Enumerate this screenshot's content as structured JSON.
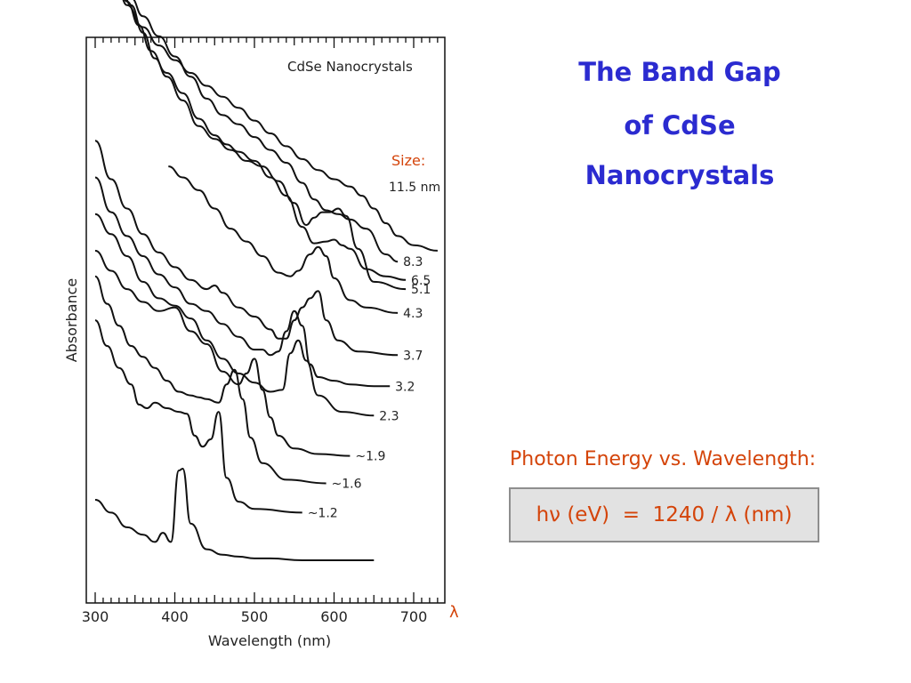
{
  "title_lines": [
    "The Band Gap",
    "of CdSe",
    "Nanocrystals"
  ],
  "photon_energy_label": "Photon Energy vs. Wavelength:",
  "formula": "hν (eV)  =  1240 / λ (nm)",
  "colors": {
    "title": "#2b2bd0",
    "accent": "#d4440a",
    "box_bg": "#e2e2e2",
    "box_border": "#8e8e8e"
  },
  "chart_data": {
    "type": "line",
    "title": "CdSe Nanocrystals",
    "xlabel": "Wavelength (nm)",
    "ylabel": "Absorbance",
    "x_axis_symbol": "λ",
    "xlim": [
      300,
      730
    ],
    "xticks": [
      "300",
      "400",
      "500",
      "600",
      "700"
    ],
    "size_header": "Size:",
    "grid": false,
    "series": [
      {
        "name": "11.5 nm",
        "x": [
          326,
          340,
          360,
          380,
          400,
          420,
          440,
          460,
          480,
          500,
          520,
          540,
          560,
          580,
          600,
          620,
          635,
          650,
          665,
          680,
          700,
          730
        ],
        "y": [
          12.0,
          11.3,
          10.7,
          10.2,
          9.8,
          9.45,
          9.1,
          8.8,
          8.5,
          8.15,
          7.8,
          7.45,
          7.1,
          6.8,
          6.55,
          6.35,
          6.1,
          5.75,
          5.35,
          5.0,
          4.75,
          4.6
        ]
      },
      {
        "name": "8.3",
        "x": [
          345,
          360,
          380,
          400,
          420,
          440,
          460,
          480,
          500,
          520,
          540,
          560,
          575,
          590,
          605,
          620,
          640,
          665,
          680
        ],
        "y": [
          11.5,
          11.0,
          10.45,
          9.9,
          9.35,
          8.75,
          8.3,
          8.05,
          7.7,
          7.35,
          7.0,
          6.45,
          6.0,
          5.7,
          5.6,
          5.45,
          5.2,
          4.5,
          4.3
        ]
      },
      {
        "name": "6.5",
        "x": [
          328,
          340,
          355,
          370,
          390,
          410,
          430,
          450,
          465,
          480,
          500,
          520,
          540,
          560,
          575,
          590,
          600,
          610,
          620,
          640,
          665,
          690
        ],
        "y": [
          12.0,
          11.4,
          10.75,
          10.05,
          9.45,
          8.9,
          8.2,
          7.75,
          7.5,
          7.3,
          7.05,
          6.6,
          6.1,
          5.25,
          4.8,
          4.85,
          4.9,
          4.75,
          4.65,
          4.1,
          3.9,
          3.8
        ]
      },
      {
        "name": "5.1",
        "x": [
          330,
          345,
          360,
          375,
          390,
          410,
          430,
          450,
          470,
          490,
          510,
          530,
          550,
          565,
          575,
          585,
          595,
          605,
          615,
          630,
          650,
          690
        ],
        "y": [
          12.0,
          11.3,
          10.55,
          9.85,
          9.35,
          8.7,
          8.0,
          7.65,
          7.35,
          7.05,
          6.9,
          6.5,
          5.9,
          5.3,
          5.5,
          5.65,
          5.65,
          5.75,
          5.55,
          4.65,
          3.75,
          3.55
        ]
      },
      {
        "name": "4.3",
        "x": [
          392,
          410,
          430,
          450,
          470,
          490,
          510,
          530,
          545,
          555,
          570,
          580,
          590,
          600,
          620,
          640,
          680
        ],
        "y": [
          6.9,
          6.6,
          6.25,
          5.75,
          5.2,
          4.85,
          4.45,
          4.0,
          3.9,
          4.05,
          4.5,
          4.7,
          4.45,
          3.85,
          3.25,
          3.05,
          2.9
        ]
      },
      {
        "name": "3.7",
        "x": [
          300,
          320,
          340,
          360,
          380,
          400,
          420,
          440,
          450,
          460,
          480,
          500,
          520,
          530,
          540,
          550,
          560,
          570,
          580,
          590,
          605,
          630,
          680
        ],
        "y": [
          7.6,
          6.55,
          5.75,
          5.05,
          4.55,
          4.15,
          3.8,
          3.55,
          3.65,
          3.45,
          3.05,
          2.8,
          2.45,
          2.2,
          2.2,
          2.7,
          3.05,
          3.3,
          3.5,
          2.7,
          2.15,
          1.85,
          1.75
        ]
      },
      {
        "name": "3.2",
        "x": [
          300,
          320,
          340,
          360,
          380,
          400,
          420,
          440,
          460,
          480,
          500,
          510,
          520,
          530,
          540,
          550,
          560,
          570,
          580,
          600,
          620,
          650,
          670
        ],
        "y": [
          6.6,
          5.65,
          5.0,
          4.45,
          3.95,
          3.6,
          3.15,
          2.95,
          2.6,
          2.25,
          1.9,
          1.9,
          1.75,
          1.85,
          2.4,
          2.95,
          2.55,
          1.5,
          1.15,
          1.05,
          0.95,
          0.9,
          0.9
        ]
      },
      {
        "name": "2.3",
        "x": [
          300,
          320,
          340,
          360,
          380,
          400,
          420,
          440,
          460,
          480,
          500,
          520,
          535,
          545,
          555,
          565,
          580,
          610,
          650
        ],
        "y": [
          5.6,
          5.05,
          4.45,
          3.75,
          3.3,
          3.1,
          2.75,
          2.15,
          1.65,
          1.25,
          1.0,
          0.75,
          0.8,
          1.8,
          2.15,
          1.6,
          0.65,
          0.2,
          0.1
        ]
      },
      {
        "name": "~1.9",
        "x": [
          300,
          320,
          340,
          360,
          380,
          400,
          420,
          440,
          460,
          480,
          490,
          500,
          510,
          520,
          530,
          550,
          580,
          620
        ],
        "y": [
          4.6,
          4.05,
          3.55,
          3.2,
          2.95,
          3.05,
          2.4,
          2.05,
          1.3,
          0.95,
          1.25,
          1.65,
          0.8,
          0.05,
          -0.45,
          -0.8,
          -0.95,
          -1.0
        ]
      },
      {
        "name": "~1.6",
        "x": [
          300,
          315,
          330,
          345,
          360,
          375,
          390,
          405,
          420,
          430,
          440,
          455,
          465,
          475,
          485,
          495,
          510,
          540,
          590
        ],
        "y": [
          3.9,
          3.15,
          2.55,
          2.0,
          1.7,
          1.4,
          1.05,
          0.75,
          0.65,
          0.6,
          0.55,
          0.45,
          0.95,
          1.35,
          0.55,
          -0.5,
          -1.2,
          -1.65,
          -1.75
        ]
      },
      {
        "name": "~1.2",
        "x": [
          300,
          315,
          330,
          345,
          355,
          365,
          375,
          390,
          405,
          415,
          425,
          435,
          445,
          455,
          465,
          480,
          500,
          560
        ],
        "y": [
          2.7,
          2.0,
          1.4,
          0.95,
          0.4,
          0.3,
          0.45,
          0.3,
          0.2,
          0.15,
          -0.45,
          -0.75,
          -0.55,
          0.2,
          -1.6,
          -2.25,
          -2.45,
          -2.55
        ]
      },
      {
        "name": "",
        "x": [
          300,
          320,
          340,
          360,
          375,
          385,
          395,
          405,
          410,
          420,
          440,
          460,
          480,
          500,
          520,
          560,
          600,
          650
        ],
        "y": [
          -2.2,
          -2.55,
          -2.95,
          -3.15,
          -3.35,
          -3.1,
          -3.35,
          -1.4,
          -1.35,
          -2.85,
          -3.55,
          -3.7,
          -3.75,
          -3.8,
          -3.8,
          -3.85,
          -3.85,
          -3.85
        ]
      }
    ]
  }
}
